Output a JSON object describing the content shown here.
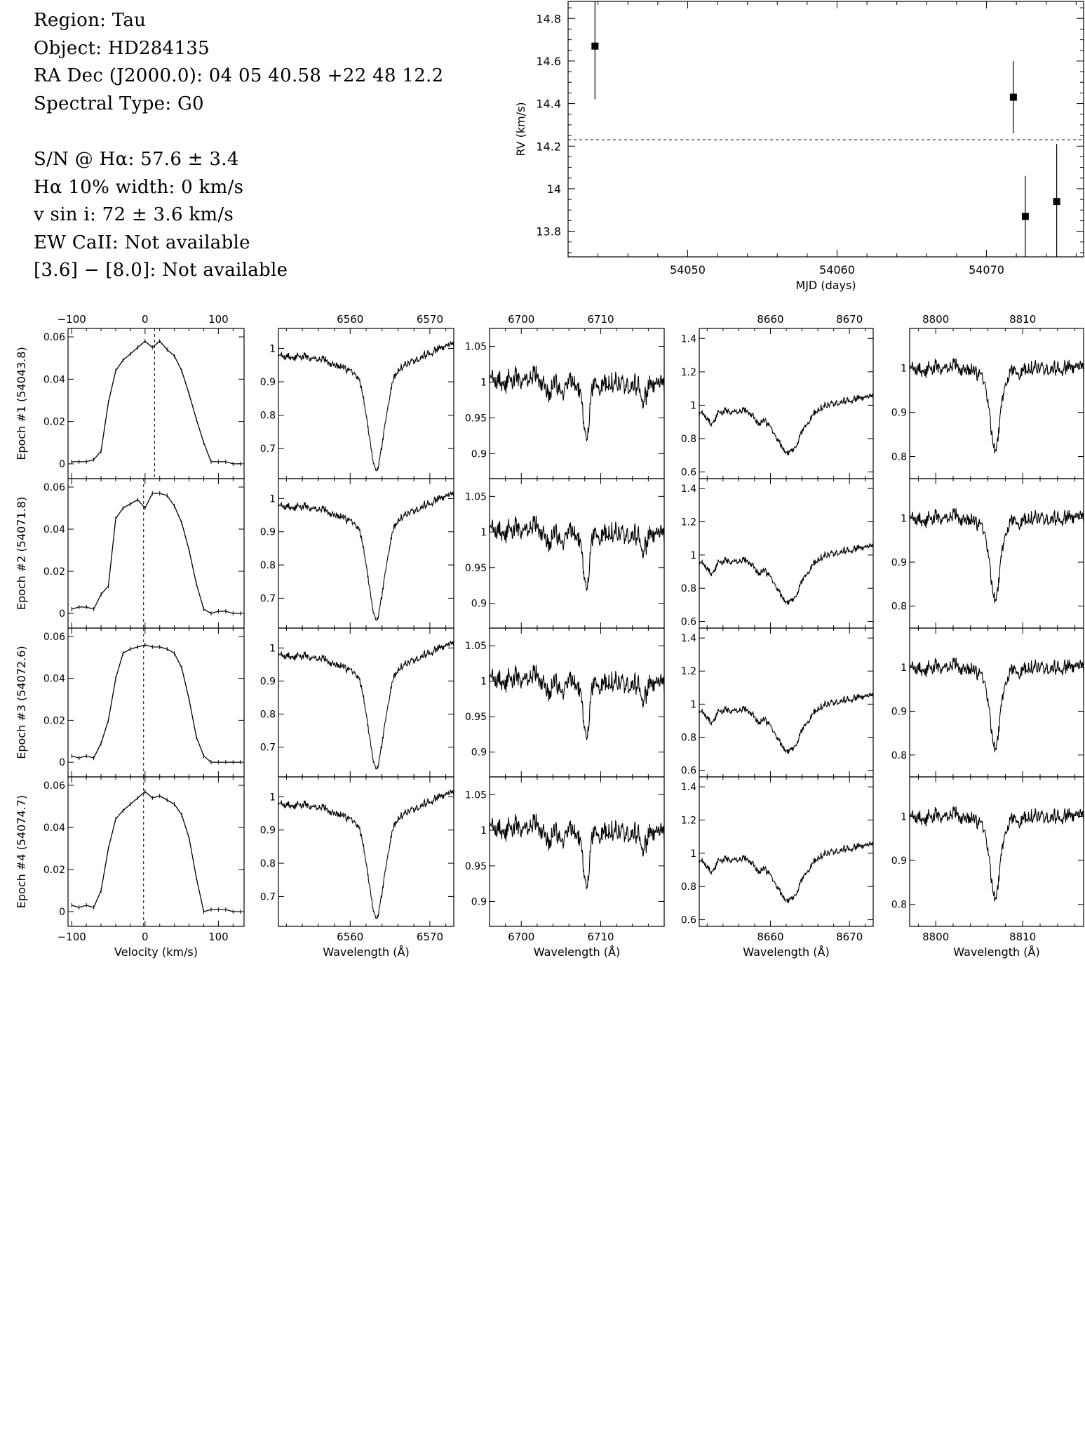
{
  "info": {
    "region": "Region: Tau",
    "object": "Object: HD284135",
    "radec": "RA Dec (J2000.0): 04 05 40.58 +22 48 12.2",
    "sptype": "Spectral Type: G0",
    "sn": "S/N @ Hα: 57.6 ± 3.4",
    "ha_width": "Hα 10% width: 0 km/s",
    "vsini": "v sin i: 72 ± 3.6 km/s",
    "ewca": "EW CaII: Not available",
    "irac": "[3.6] − [8.0]: Not available"
  },
  "chart_data": [
    {
      "type": "scatter",
      "id": "rv",
      "xlabel": "MJD (days)",
      "ylabel": "RV (km/s)",
      "xlim": [
        54042,
        54076.5
      ],
      "ylim": [
        13.68,
        14.88
      ],
      "xticks": [
        54050,
        54060,
        54070
      ],
      "yticks": [
        13.8,
        14,
        14.2,
        14.4,
        14.6,
        14.8
      ],
      "x_minor_step": 2,
      "y_minor_step": 0.05,
      "reference_line": 14.23,
      "points": [
        {
          "x": 54043.8,
          "y": 14.67,
          "err": 0.25
        },
        {
          "x": 54071.8,
          "y": 14.43,
          "err": 0.17
        },
        {
          "x": 54072.6,
          "y": 13.87,
          "err": 0.19
        },
        {
          "x": 54074.7,
          "y": 13.94,
          "err": 0.27
        }
      ]
    },
    {
      "type": "line",
      "id": "grid",
      "row_labels": [
        "Epoch #1 (54043.8)",
        "Epoch #2 (54071.8)",
        "Epoch #3 (54072.6)",
        "Epoch #4 (54074.7)"
      ],
      "columns": [
        {
          "kind": "ccf",
          "xlabel": "Velocity (km/s)",
          "xlim": [
            -105,
            135
          ],
          "xticks": [
            -100,
            0,
            100
          ],
          "ylim": [
            -0.007,
            0.064
          ],
          "yticks": [
            0,
            0.02,
            0.04,
            0.06
          ],
          "rv_line": [
            13,
            -2,
            -2,
            -2
          ],
          "ccf_x": [
            -100,
            -90,
            -80,
            -70,
            -60,
            -50,
            -40,
            -30,
            -20,
            -10,
            0,
            10,
            20,
            30,
            40,
            50,
            60,
            70,
            80,
            90,
            100,
            110,
            120,
            130
          ],
          "ccf_y": [
            [
              0.001,
              0.001,
              0.001,
              0.002,
              0.006,
              0.029,
              0.044,
              0.049,
              0.052,
              0.055,
              0.058,
              0.055,
              0.058,
              0.054,
              0.051,
              0.044,
              0.033,
              0.021,
              0.01,
              0.001,
              0.001,
              0.001,
              0.0,
              0.0
            ],
            [
              0.002,
              0.003,
              0.003,
              0.002,
              0.009,
              0.013,
              0.045,
              0.05,
              0.052,
              0.054,
              0.05,
              0.057,
              0.057,
              0.056,
              0.051,
              0.043,
              0.03,
              0.014,
              0.002,
              0.0,
              0.001,
              0.001,
              0.0,
              0.0
            ],
            [
              0.003,
              0.002,
              0.003,
              0.002,
              0.009,
              0.02,
              0.04,
              0.052,
              0.054,
              0.055,
              0.056,
              0.055,
              0.055,
              0.054,
              0.052,
              0.045,
              0.03,
              0.012,
              0.003,
              0.0,
              0.0,
              0.0,
              0.0,
              0.0
            ],
            [
              0.003,
              0.002,
              0.003,
              0.002,
              0.01,
              0.03,
              0.044,
              0.048,
              0.051,
              0.054,
              0.057,
              0.054,
              0.055,
              0.053,
              0.051,
              0.046,
              0.035,
              0.016,
              0.0,
              0.001,
              0.001,
              0.001,
              0.0,
              0.0
            ]
          ]
        },
        {
          "kind": "spectrum",
          "xlabel": "Wavelength (Å)",
          "xlim": [
            6551,
            6573
          ],
          "xticks": [
            6560,
            6570
          ],
          "ylim": [
            0.61,
            1.06
          ],
          "yticks": [
            0.7,
            0.8,
            0.9,
            1
          ],
          "line_center": 6563.3,
          "depth": 0.28,
          "width": 1.4,
          "wing_depth": 0.08,
          "wing_width": 6.5,
          "slope": 0.04,
          "noise": 0.012,
          "extra_lines": []
        },
        {
          "kind": "spectrum",
          "xlabel": "Wavelength (Å)",
          "xlim": [
            6696,
            6718
          ],
          "xticks": [
            6700,
            6710
          ],
          "ylim": [
            0.865,
            1.075
          ],
          "yticks": [
            0.9,
            0.95,
            1,
            1.05
          ],
          "line_center": 6708.2,
          "depth": 0.07,
          "width": 0.6,
          "wing_depth": 0,
          "wing_width": 1,
          "slope": -0.01,
          "noise": 0.016,
          "extra_lines": [
            [
              6703.5,
              0.02,
              0.5
            ],
            [
              6705.1,
              0.02,
              0.4
            ],
            [
              6715.5,
              0.02,
              0.5
            ]
          ]
        },
        {
          "kind": "spectrum",
          "xlabel": "Wavelength (Å)",
          "xlim": [
            8651,
            8673
          ],
          "xticks": [
            8660,
            8670
          ],
          "ylim": [
            0.56,
            1.46
          ],
          "yticks": [
            0.6,
            0.8,
            1,
            1.2,
            1.4
          ],
          "line_center": 8662.3,
          "depth": 0.22,
          "width": 2.2,
          "wing_depth": 0.06,
          "wing_width": 5,
          "slope": 0.1,
          "noise": 0.022,
          "extra_lines": [
            [
              8652.5,
              0.06,
              0.6
            ],
            [
              8658.5,
              0.05,
              0.6
            ]
          ]
        },
        {
          "kind": "spectrum",
          "xlabel": "Wavelength (Å)",
          "xlim": [
            8797,
            8817
          ],
          "xticks": [
            8800,
            8810
          ],
          "ylim": [
            0.75,
            1.09
          ],
          "yticks": [
            0.8,
            0.9,
            1
          ],
          "line_center": 8806.8,
          "depth": 0.16,
          "width": 0.8,
          "wing_depth": 0.02,
          "wing_width": 2.5,
          "slope": 0,
          "noise": 0.018,
          "extra_lines": []
        }
      ]
    }
  ]
}
